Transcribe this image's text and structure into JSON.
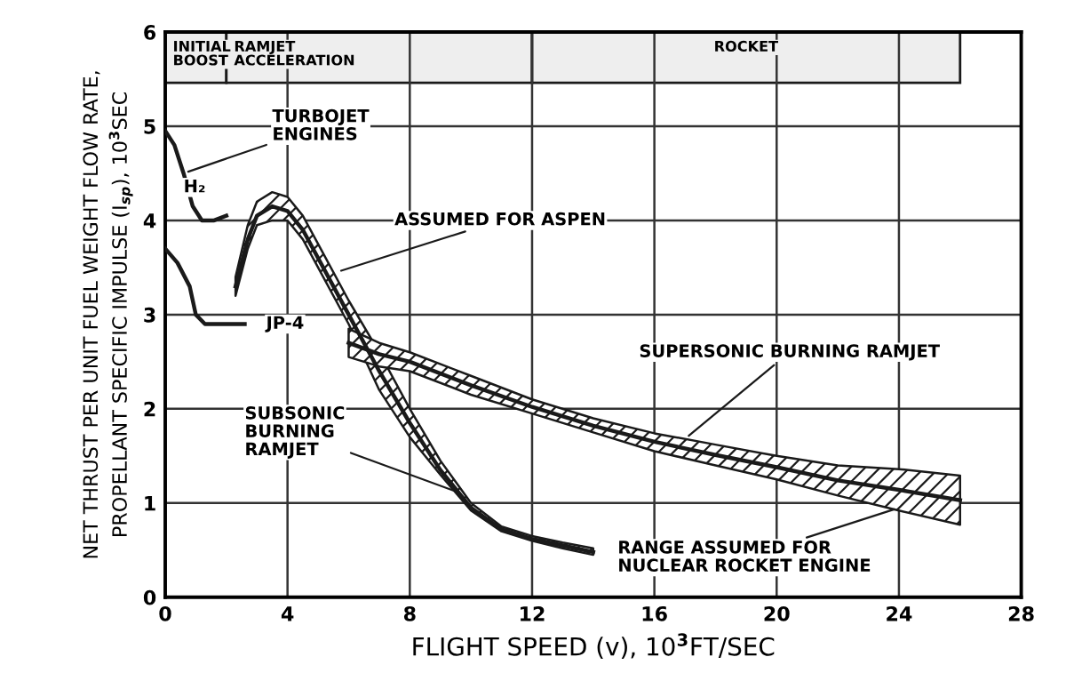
{
  "chart_data": {
    "type": "line",
    "xlabel": "FLIGHT SPEED (v), 10$^{3}$FT/SEC",
    "ylabel": "NET THRUST PER UNIT FUEL WEIGHT FLOW RATE,\nPROPELLANT SPECIFIC IMPULSE (I$_{sp}$), 10$^{3}$SEC",
    "xlim": [
      0,
      28
    ],
    "xticks": [
      0,
      4,
      8,
      12,
      16,
      20,
      24,
      28
    ],
    "ylim": [
      0,
      6
    ],
    "yticks": [
      0,
      1,
      2,
      3,
      4,
      5,
      6
    ],
    "grid": true,
    "marker": "none",
    "line_style": "solid",
    "series": [
      {
        "color": "#1a1a1a",
        "x": [
          0,
          0.3,
          0.6,
          0.9,
          1.2,
          1.6,
          2.0
        ],
        "values": [
          4.95,
          4.8,
          4.5,
          4.15,
          4.0,
          4.0,
          4.05
        ]
      },
      {
        "color": "#1a1a1a",
        "x": [
          0,
          0.4,
          0.8,
          1.0,
          1.3,
          2.0,
          2.6
        ],
        "values": [
          3.7,
          3.55,
          3.3,
          3.0,
          2.9,
          2.9,
          2.9
        ]
      },
      {
        "color": "#1a1a1a",
        "x": [
          2.3,
          2.7,
          3.0,
          3.5,
          4.0,
          4.5,
          5,
          6,
          7,
          8,
          9,
          10,
          11,
          12,
          13,
          14
        ],
        "values": [
          3.3,
          3.8,
          4.05,
          4.15,
          4.1,
          3.9,
          3.6,
          3.0,
          2.4,
          1.85,
          1.35,
          0.95,
          0.72,
          0.62,
          0.55,
          0.48
        ],
        "lower": [
          3.2,
          3.7,
          3.95,
          4.0,
          4.0,
          3.8,
          3.5,
          2.9,
          2.2,
          1.7,
          1.3,
          0.92,
          0.7,
          0.6,
          0.52,
          0.45
        ],
        "upper": [
          3.4,
          3.95,
          4.2,
          4.3,
          4.25,
          4.05,
          3.75,
          3.15,
          2.6,
          2.0,
          1.45,
          1.0,
          0.75,
          0.65,
          0.58,
          0.52
        ]
      },
      {
        "color": "#1a1a1a",
        "x": [
          6,
          7,
          8,
          10,
          12,
          14,
          16,
          18,
          20,
          22,
          24,
          26
        ],
        "values": [
          2.7,
          2.58,
          2.5,
          2.25,
          2.02,
          1.82,
          1.65,
          1.51,
          1.38,
          1.24,
          1.14,
          1.03
        ],
        "lower": [
          2.55,
          2.45,
          2.4,
          2.15,
          1.95,
          1.75,
          1.55,
          1.4,
          1.25,
          1.08,
          0.92,
          0.77
        ],
        "upper": [
          2.85,
          2.7,
          2.6,
          2.35,
          2.1,
          1.9,
          1.74,
          1.62,
          1.5,
          1.4,
          1.36,
          1.29
        ]
      }
    ],
    "bands": [
      {
        "axis": "x",
        "from": 0,
        "to": 2,
        "label": "INITIAL\nBOOST",
        "color": "#eeeeee"
      },
      {
        "axis": "x",
        "from": 2,
        "to": 12,
        "label": "RAMJET\nACCELERATION",
        "color": "#eeeeee"
      },
      {
        "axis": "x",
        "from": 12,
        "to": 26,
        "label": "ROCKET",
        "color": "#eeeeee"
      }
    ],
    "annotations": [
      {
        "text": "TURBOJET\nENGINES",
        "x": 0.6,
        "y": 4.5
      },
      {
        "text": "H₂",
        "x": 0.9,
        "y": 4.25
      },
      {
        "text": "JP-4",
        "x": 2.6,
        "y": 2.9
      },
      {
        "text": "ASSUMED FOR ASPEN",
        "x": 5.6,
        "y": 3.45
      },
      {
        "text": "SUPERSONIC BURNING RAMJET",
        "x": 17,
        "y": 1.68
      },
      {
        "text": "SUBSONIC\nBURNING\nRAMJET",
        "x": 9.7,
        "y": 1.1
      },
      {
        "text": "RANGE ASSUMED FOR\nNUCLEAR ROCKET ENGINE",
        "x": 24,
        "y": 0.95
      }
    ]
  }
}
